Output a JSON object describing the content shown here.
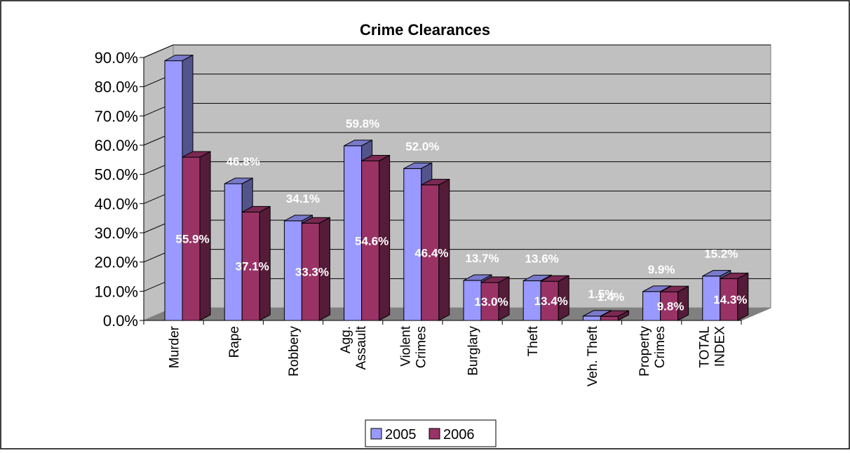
{
  "chart_data": {
    "type": "bar",
    "title": "Crime Clearances",
    "xlabel": "",
    "ylabel": "",
    "ylim": [
      0,
      90
    ],
    "yticks": [
      "0.0%",
      "10.0%",
      "20.0%",
      "30.0%",
      "40.0%",
      "50.0%",
      "60.0%",
      "70.0%",
      "80.0%",
      "90.0%"
    ],
    "grid": true,
    "legend_position": "bottom",
    "categories": [
      "Murder",
      "Rape",
      "Robbery",
      "Agg. Assault",
      "Violent Crimes",
      "Burglary",
      "Theft",
      "Veh. Theft",
      "Property Crimes",
      "TOTAL INDEX"
    ],
    "category_lines": [
      [
        "Murder"
      ],
      [
        "Rape"
      ],
      [
        "Robbery"
      ],
      [
        "Agg.",
        "Assault"
      ],
      [
        "Violent",
        "Crimes"
      ],
      [
        "Burglary"
      ],
      [
        "Theft"
      ],
      [
        "Veh. Theft"
      ],
      [
        "Property",
        "Crimes"
      ],
      [
        "TOTAL",
        "INDEX"
      ]
    ],
    "series": [
      {
        "name": "2005",
        "color": "#9999ff",
        "values": [
          88.9,
          46.8,
          34.1,
          59.8,
          52.0,
          13.7,
          13.6,
          1.5,
          9.9,
          15.2
        ],
        "labels": [
          "",
          "46.8%",
          "34.1%",
          "59.8%",
          "52.0%",
          "13.7%",
          "13.6%",
          "1.5%",
          "9.9%",
          "15.2%"
        ]
      },
      {
        "name": "2006",
        "color": "#993366",
        "values": [
          55.9,
          37.1,
          33.3,
          54.6,
          46.4,
          13.0,
          13.4,
          1.4,
          9.8,
          14.3
        ],
        "labels": [
          "55.9%",
          "37.1%",
          "33.3%",
          "54.6%",
          "46.4%",
          "13.0%",
          "13.4%",
          "1.4%",
          "9.8%",
          "14.3%"
        ]
      }
    ]
  }
}
